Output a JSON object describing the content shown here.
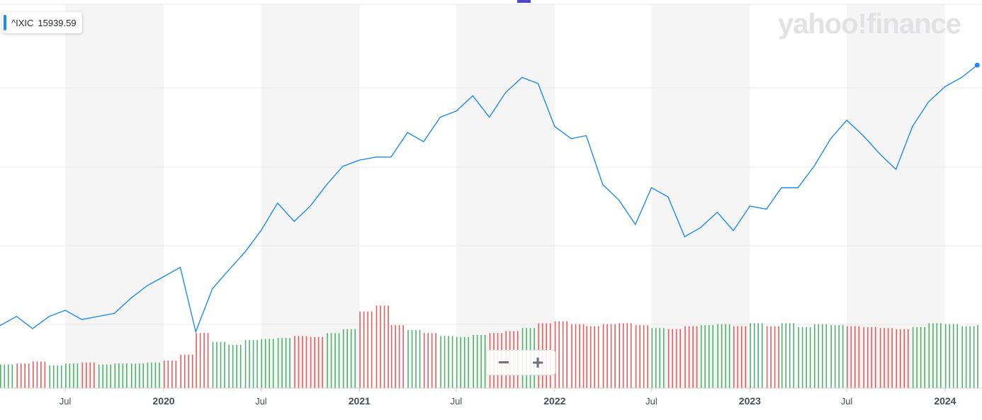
{
  "legend": {
    "symbol": "^IXIC",
    "value": "15939.59"
  },
  "brand": "yahoo!finance",
  "zoom": {
    "minus": "−",
    "plus": "+"
  },
  "colors": {
    "line": "#1d8cf0",
    "volume_up": "#4cb36a",
    "volume_down": "#ea5b5b",
    "band": "#f5f5f5",
    "grid": "#e8e8e8"
  },
  "chart_data": {
    "type": "line",
    "series": [
      {
        "name": "^IXIC",
        "x": [
          "2019-03",
          "2019-04",
          "2019-05",
          "2019-06",
          "2019-07",
          "2019-08",
          "2019-09",
          "2019-10",
          "2019-11",
          "2019-12",
          "2020-01",
          "2020-02",
          "2020-03",
          "2020-04",
          "2020-05",
          "2020-06",
          "2020-07",
          "2020-08",
          "2020-09",
          "2020-10",
          "2020-11",
          "2020-12",
          "2021-01",
          "2021-02",
          "2021-03",
          "2021-04",
          "2021-05",
          "2021-06",
          "2021-07",
          "2021-08",
          "2021-09",
          "2021-10",
          "2021-11",
          "2021-12",
          "2022-01",
          "2022-02",
          "2022-03",
          "2022-04",
          "2022-05",
          "2022-06",
          "2022-07",
          "2022-08",
          "2022-09",
          "2022-10",
          "2022-11",
          "2022-12",
          "2023-01",
          "2023-02",
          "2023-03",
          "2023-04",
          "2023-05",
          "2023-06",
          "2023-07",
          "2023-08",
          "2023-09",
          "2023-10",
          "2023-11",
          "2023-12",
          "2024-01",
          "2024-02",
          "2024-03"
        ],
        "values": [
          7700,
          8000,
          7600,
          8000,
          8200,
          7900,
          8000,
          8100,
          8600,
          9000,
          9300,
          9600,
          7500,
          8900,
          9500,
          10100,
          10800,
          11700,
          11100,
          11600,
          12300,
          12900,
          13100,
          13200,
          13200,
          14000,
          13700,
          14500,
          14700,
          15200,
          14500,
          15300,
          15800,
          15600,
          14200,
          13800,
          13900,
          12300,
          11800,
          11000,
          12200,
          11900,
          10600,
          10900,
          11400,
          10800,
          11600,
          11500,
          12200,
          12200,
          12900,
          13800,
          14400,
          13900,
          13300,
          12800,
          14200,
          15000,
          15500,
          15800,
          16200
        ]
      }
    ],
    "volume": {
      "down": [
        false,
        true,
        true,
        false,
        false,
        true,
        false,
        false,
        false,
        false,
        true,
        true,
        true,
        false,
        false,
        false,
        false,
        false,
        true,
        true,
        false,
        false,
        true,
        true,
        true,
        false,
        true,
        false,
        false,
        false,
        true,
        true,
        false,
        true,
        true,
        true,
        true,
        true,
        true,
        true,
        false,
        true,
        true,
        false,
        false,
        true,
        false,
        true,
        false,
        false,
        false,
        false,
        true,
        true,
        true,
        true,
        false,
        false,
        false,
        false,
        false
      ],
      "values": [
        2.4,
        2.5,
        2.7,
        2.3,
        2.5,
        2.6,
        2.4,
        2.5,
        2.5,
        2.6,
        2.8,
        3.4,
        5.6,
        4.7,
        4.4,
        4.9,
        5.0,
        5.1,
        5.3,
        5.2,
        5.6,
        6.0,
        7.8,
        8.4,
        6.4,
        5.9,
        5.6,
        5.3,
        5.2,
        5.4,
        5.6,
        5.8,
        6.1,
        6.6,
        6.8,
        6.5,
        6.3,
        6.5,
        6.6,
        6.4,
        6.1,
        6.0,
        6.3,
        6.4,
        6.5,
        6.3,
        6.6,
        6.3,
        6.6,
        6.2,
        6.5,
        6.4,
        6.3,
        6.2,
        6.1,
        6.0,
        6.2,
        6.6,
        6.5,
        6.3,
        6.4
      ]
    },
    "x_ticks": [
      "Jul",
      "2020",
      "Jul",
      "2021",
      "Jul",
      "2022",
      "Jul",
      "2023",
      "Jul",
      "2024"
    ],
    "grid": true,
    "legend": "top-left"
  }
}
